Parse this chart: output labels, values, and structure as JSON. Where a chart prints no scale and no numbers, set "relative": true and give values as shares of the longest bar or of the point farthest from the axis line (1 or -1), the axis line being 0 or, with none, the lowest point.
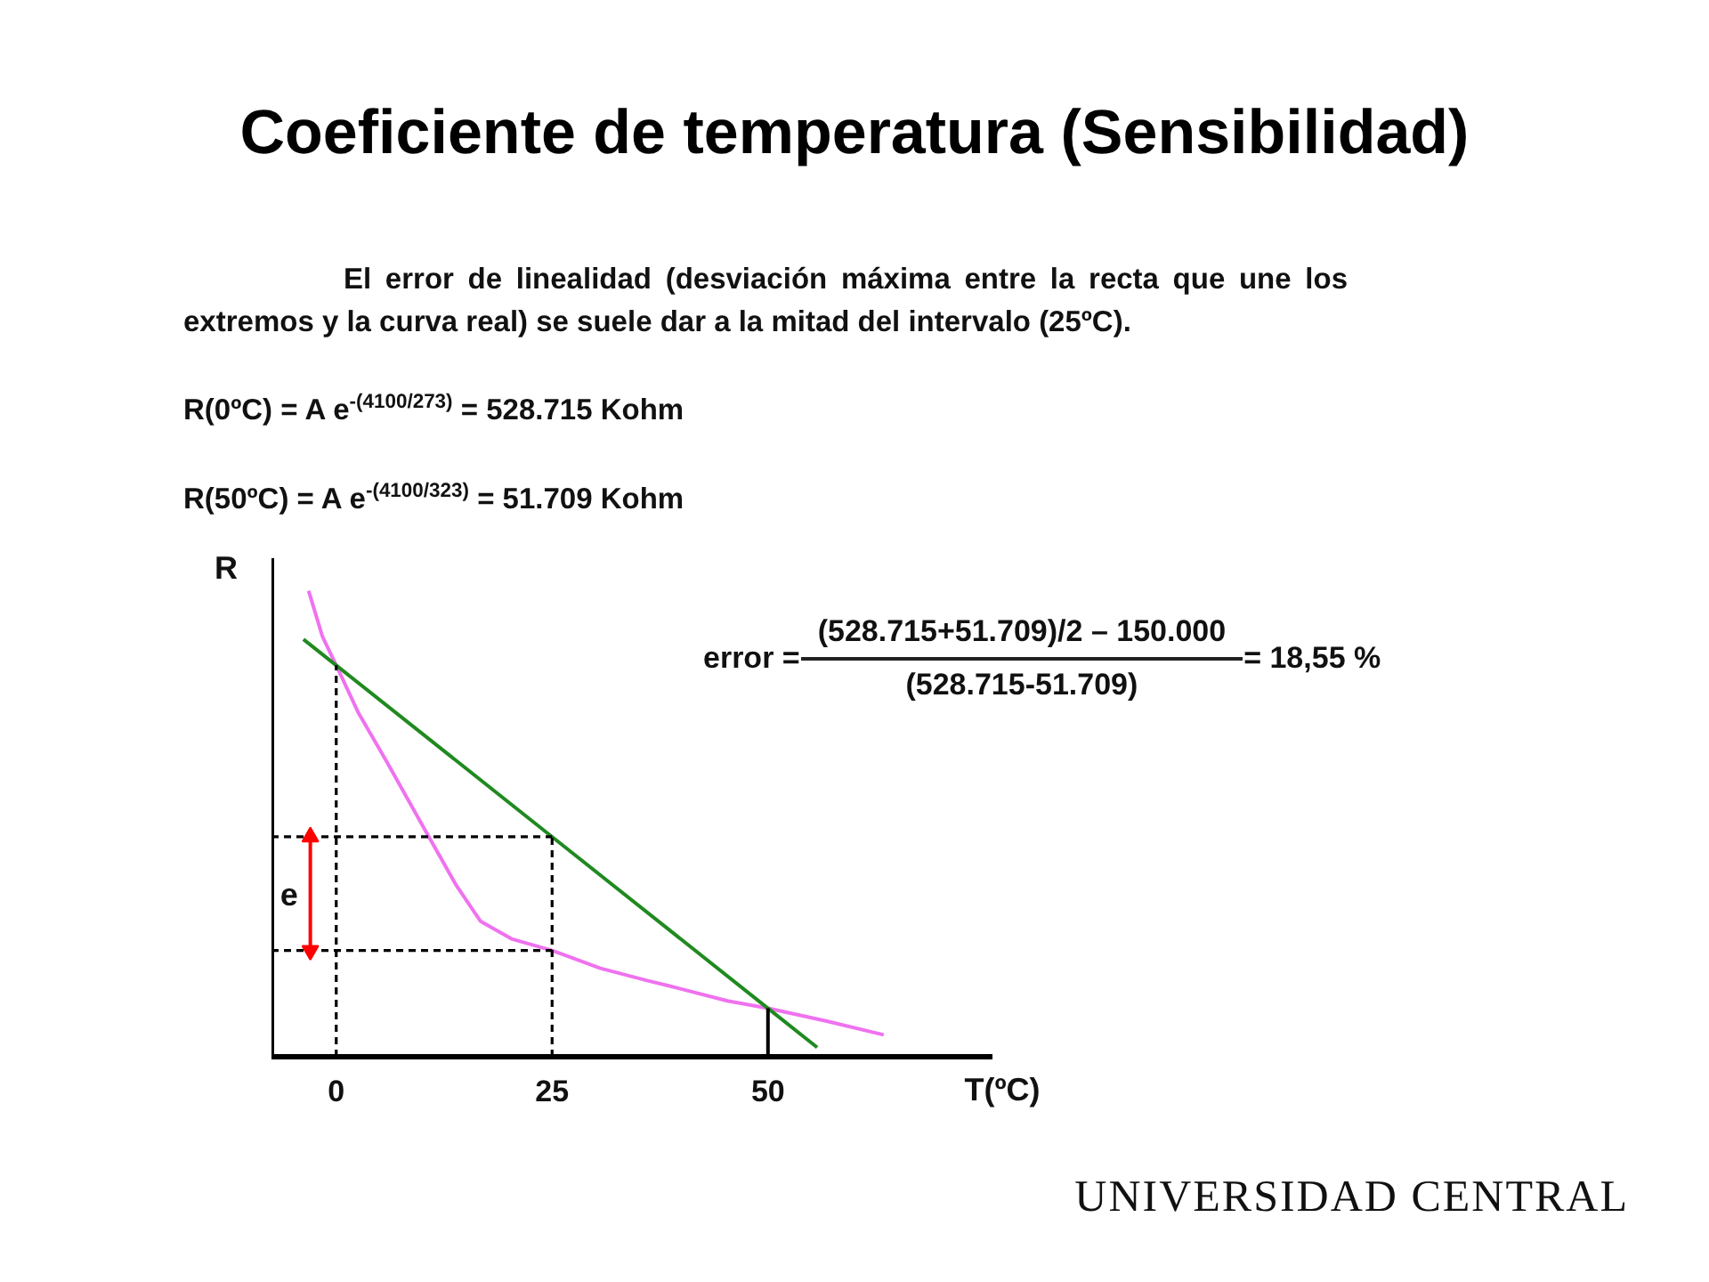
{
  "chart_data": {
    "type": "line",
    "title": "Coeficiente de temperatura (Sensibilidad)",
    "xlabel": "T(ºC)",
    "ylabel": "R",
    "relative": true,
    "xlim": [
      -7.5,
      76
    ],
    "xticks": [
      0,
      25,
      50
    ],
    "tick_labels": "x",
    "series": [
      {
        "color": "#ef72ef",
        "x": [
          -3.2,
          -1.6,
          0,
          2.6,
          5.8,
          10.7,
          13.9,
          16.7,
          20.3,
          25,
          30.6,
          35.9,
          38.6,
          45.3,
          50,
          56.7,
          63.4
        ],
        "values": [
          1.0,
          0.902,
          0.84,
          0.737,
          0.635,
          0.473,
          0.368,
          0.291,
          0.253,
          0.228,
          0.19,
          0.164,
          0.152,
          0.12,
          0.104,
          0.077,
          0.047
        ]
      },
      {
        "color": "#208a20",
        "x": [
          -3.8,
          0,
          25,
          50,
          55.7
        ],
        "values": [
          0.896,
          0.84,
          0.472,
          0.104,
          0.02
        ]
      },
      {
        "color": "#000000",
        "line_style": "dashed",
        "x": [
          0,
          0
        ],
        "values": [
          0,
          0.84
        ]
      },
      {
        "color": "#000000",
        "line_style": "dashed",
        "x": [
          25,
          25
        ],
        "values": [
          0,
          0.472
        ]
      },
      {
        "color": "#000000",
        "x": [
          50,
          50
        ],
        "values": [
          0,
          0.104
        ]
      },
      {
        "color": "#000000",
        "line_style": "dashed",
        "x": [
          -7.5,
          25
        ],
        "values": [
          0.472,
          0.472
        ]
      },
      {
        "color": "#000000",
        "line_style": "dashed",
        "x": [
          -7.5,
          25
        ],
        "values": [
          0.228,
          0.228
        ]
      },
      {
        "color": "#ff0000",
        "marker": "triangle",
        "x": [
          -3,
          -3
        ],
        "values": [
          0.228,
          0.472
        ]
      }
    ],
    "ref_lines": [
      {
        "axis": "x",
        "value": -7.5,
        "color": "#000000"
      }
    ],
    "annotations": [
      "El error de linealidad (desviación máxima entre la recta que une los extremos y la curva real) se suele dar a la mitad del intervalo (25ºC).",
      "R(0ºC) = A e$^{-(4100/273)}$ = 528.715 Kohm",
      "R(50ºC) = A e$^{-(4100/323)}$ = 51.709 Kohm",
      "error =",
      "(528.715+51.709)/2 – 150.000",
      "(528.715-51.709)",
      "= 18,55 %",
      "UNIVERSIDAD CENTRAL",
      {
        "text": "e",
        "x": -3,
        "y": 0.35
      }
    ]
  }
}
